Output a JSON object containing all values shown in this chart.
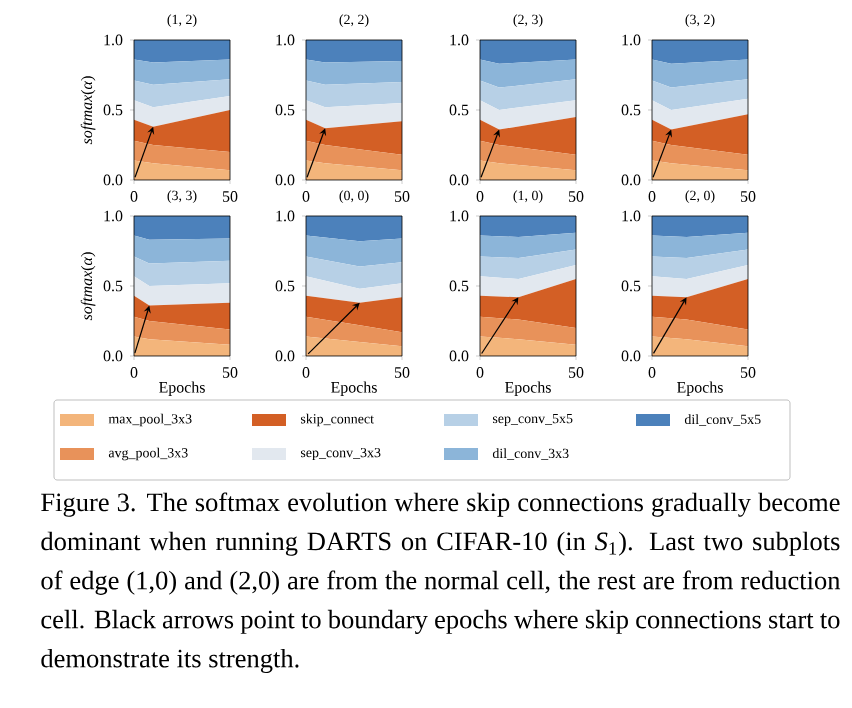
{
  "chart_data": [
    {
      "type": "area",
      "stacked": true,
      "title": "(1, 2)",
      "ylabel": "*softmax*(*α*)",
      "x": [
        0,
        10,
        50
      ],
      "xlim": [
        0,
        50
      ],
      "ylim": [
        0,
        1
      ],
      "xticks": [
        0,
        50
      ],
      "yticks": [
        {
          "value": 0,
          "label": "0.0"
        },
        {
          "value": 0.5,
          "label": "0.5"
        },
        {
          "value": 1,
          "label": "1.0"
        }
      ],
      "series": [
        {
          "color": "#f3b57b",
          "values": [
            0.14,
            0.12,
            0.07
          ]
        },
        {
          "color": "#e8925a",
          "values": [
            0.14,
            0.13,
            0.13
          ]
        },
        {
          "color": "#d35f25",
          "values": [
            0.15,
            0.13,
            0.3
          ]
        },
        {
          "color": "#e2e8ef",
          "values": [
            0.14,
            0.14,
            0.1
          ]
        },
        {
          "color": "#b7d0e6",
          "values": [
            0.14,
            0.16,
            0.12
          ]
        },
        {
          "color": "#8cb5d9",
          "values": [
            0.15,
            0.16,
            0.14
          ]
        },
        {
          "color": "#4c81bb",
          "values": [
            0.14,
            0.16,
            0.14
          ]
        }
      ]
    },
    {
      "type": "area",
      "stacked": true,
      "title": "(2, 2)",
      "x": [
        0,
        10,
        50
      ],
      "xlim": [
        0,
        50
      ],
      "ylim": [
        0,
        1
      ],
      "xticks": [
        0,
        50
      ],
      "yticks": [
        {
          "value": 0,
          "label": "0.0"
        },
        {
          "value": 0.5,
          "label": "0.5"
        },
        {
          "value": 1,
          "label": "1.0"
        }
      ],
      "series": [
        {
          "color": "#f3b57b",
          "values": [
            0.14,
            0.12,
            0.07
          ]
        },
        {
          "color": "#e8925a",
          "values": [
            0.14,
            0.13,
            0.11
          ]
        },
        {
          "color": "#d35f25",
          "values": [
            0.15,
            0.12,
            0.24
          ]
        },
        {
          "color": "#e2e8ef",
          "values": [
            0.14,
            0.15,
            0.13
          ]
        },
        {
          "color": "#b7d0e6",
          "values": [
            0.14,
            0.16,
            0.15
          ]
        },
        {
          "color": "#8cb5d9",
          "values": [
            0.15,
            0.16,
            0.15
          ]
        },
        {
          "color": "#4c81bb",
          "values": [
            0.14,
            0.16,
            0.15
          ]
        }
      ]
    },
    {
      "type": "area",
      "stacked": true,
      "title": "(2, 3)",
      "x": [
        0,
        10,
        50
      ],
      "xlim": [
        0,
        50
      ],
      "ylim": [
        0,
        1
      ],
      "xticks": [
        0,
        50
      ],
      "yticks": [
        {
          "value": 0,
          "label": "0.0"
        },
        {
          "value": 0.5,
          "label": "0.5"
        },
        {
          "value": 1,
          "label": "1.0"
        }
      ],
      "series": [
        {
          "color": "#f3b57b",
          "values": [
            0.14,
            0.12,
            0.07
          ]
        },
        {
          "color": "#e8925a",
          "values": [
            0.14,
            0.13,
            0.11
          ]
        },
        {
          "color": "#d35f25",
          "values": [
            0.15,
            0.11,
            0.27
          ]
        },
        {
          "color": "#e2e8ef",
          "values": [
            0.14,
            0.14,
            0.12
          ]
        },
        {
          "color": "#b7d0e6",
          "values": [
            0.14,
            0.16,
            0.15
          ]
        },
        {
          "color": "#8cb5d9",
          "values": [
            0.15,
            0.17,
            0.14
          ]
        },
        {
          "color": "#4c81bb",
          "values": [
            0.14,
            0.17,
            0.14
          ]
        }
      ]
    },
    {
      "type": "area",
      "stacked": true,
      "title": "(3, 2)",
      "x": [
        0,
        10,
        50
      ],
      "xlim": [
        0,
        50
      ],
      "ylim": [
        0,
        1
      ],
      "xticks": [
        0,
        50
      ],
      "yticks": [
        {
          "value": 0,
          "label": "0.0"
        },
        {
          "value": 0.5,
          "label": "0.5"
        },
        {
          "value": 1,
          "label": "1.0"
        }
      ],
      "series": [
        {
          "color": "#f3b57b",
          "values": [
            0.14,
            0.12,
            0.07
          ]
        },
        {
          "color": "#e8925a",
          "values": [
            0.14,
            0.13,
            0.11
          ]
        },
        {
          "color": "#d35f25",
          "values": [
            0.15,
            0.11,
            0.29
          ]
        },
        {
          "color": "#e2e8ef",
          "values": [
            0.14,
            0.14,
            0.11
          ]
        },
        {
          "color": "#b7d0e6",
          "values": [
            0.14,
            0.16,
            0.14
          ]
        },
        {
          "color": "#8cb5d9",
          "values": [
            0.15,
            0.17,
            0.14
          ]
        },
        {
          "color": "#4c81bb",
          "values": [
            0.14,
            0.17,
            0.14
          ]
        }
      ]
    },
    {
      "type": "area",
      "stacked": true,
      "title": "(3, 3)",
      "ylabel": "*softmax*(*α*)",
      "x": [
        0,
        8,
        50
      ],
      "xlim": [
        0,
        50
      ],
      "ylim": [
        0,
        1
      ],
      "xticks": [
        0,
        50
      ],
      "yticks": [
        {
          "value": 0,
          "label": "0.0"
        },
        {
          "value": 0.5,
          "label": "0.5"
        },
        {
          "value": 1,
          "label": "1.0"
        }
      ],
      "xlabel": "Epochs",
      "series": [
        {
          "color": "#f3b57b",
          "values": [
            0.14,
            0.12,
            0.08
          ]
        },
        {
          "color": "#e8925a",
          "values": [
            0.14,
            0.13,
            0.11
          ]
        },
        {
          "color": "#d35f25",
          "values": [
            0.15,
            0.11,
            0.19
          ]
        },
        {
          "color": "#e2e8ef",
          "values": [
            0.14,
            0.14,
            0.14
          ]
        },
        {
          "color": "#b7d0e6",
          "values": [
            0.14,
            0.16,
            0.16
          ]
        },
        {
          "color": "#8cb5d9",
          "values": [
            0.15,
            0.17,
            0.16
          ]
        },
        {
          "color": "#4c81bb",
          "values": [
            0.14,
            0.17,
            0.16
          ]
        }
      ]
    },
    {
      "type": "area",
      "stacked": true,
      "title": "(0, 0)",
      "x": [
        0,
        28,
        50
      ],
      "xlim": [
        0,
        50
      ],
      "ylim": [
        0,
        1
      ],
      "xticks": [
        0,
        50
      ],
      "yticks": [
        {
          "value": 0,
          "label": "0.0"
        },
        {
          "value": 0.5,
          "label": "0.5"
        },
        {
          "value": 1,
          "label": "1.0"
        }
      ],
      "xlabel": "Epochs",
      "series": [
        {
          "color": "#f3b57b",
          "values": [
            0.14,
            0.1,
            0.07
          ]
        },
        {
          "color": "#e8925a",
          "values": [
            0.14,
            0.12,
            0.1
          ]
        },
        {
          "color": "#d35f25",
          "values": [
            0.15,
            0.16,
            0.25
          ]
        },
        {
          "color": "#e2e8ef",
          "values": [
            0.14,
            0.1,
            0.1
          ]
        },
        {
          "color": "#b7d0e6",
          "values": [
            0.14,
            0.16,
            0.15
          ]
        },
        {
          "color": "#8cb5d9",
          "values": [
            0.15,
            0.18,
            0.17
          ]
        },
        {
          "color": "#4c81bb",
          "values": [
            0.14,
            0.18,
            0.16
          ]
        }
      ]
    },
    {
      "type": "area",
      "stacked": true,
      "title": "(1, 0)",
      "x": [
        0,
        20,
        50
      ],
      "xlim": [
        0,
        50
      ],
      "ylim": [
        0,
        1
      ],
      "xticks": [
        0,
        50
      ],
      "yticks": [
        {
          "value": 0,
          "label": "0.0"
        },
        {
          "value": 0.5,
          "label": "0.5"
        },
        {
          "value": 1,
          "label": "1.0"
        }
      ],
      "xlabel": "Epochs",
      "series": [
        {
          "color": "#f3b57b",
          "values": [
            0.14,
            0.12,
            0.08
          ]
        },
        {
          "color": "#e8925a",
          "values": [
            0.14,
            0.14,
            0.12
          ]
        },
        {
          "color": "#d35f25",
          "values": [
            0.15,
            0.16,
            0.35
          ]
        },
        {
          "color": "#e2e8ef",
          "values": [
            0.14,
            0.13,
            0.1
          ]
        },
        {
          "color": "#b7d0e6",
          "values": [
            0.14,
            0.15,
            0.11
          ]
        },
        {
          "color": "#8cb5d9",
          "values": [
            0.15,
            0.15,
            0.12
          ]
        },
        {
          "color": "#4c81bb",
          "values": [
            0.14,
            0.15,
            0.12
          ]
        }
      ]
    },
    {
      "type": "area",
      "stacked": true,
      "title": "(2, 0)",
      "x": [
        0,
        18,
        50
      ],
      "xlim": [
        0,
        50
      ],
      "ylim": [
        0,
        1
      ],
      "xticks": [
        0,
        50
      ],
      "yticks": [
        {
          "value": 0,
          "label": "0.0"
        },
        {
          "value": 0.5,
          "label": "0.5"
        },
        {
          "value": 1,
          "label": "1.0"
        }
      ],
      "xlabel": "Epochs",
      "legend": "bottom",
      "annotations": [
        "Figure 3. The softmax evolution where skip connections gradually become dominant when running DARTS on CIFAR-10 (in *S*$_{1}$). Last two subplots of edge (1,0) and (2,0) are from the normal cell, the rest are from reduction cell. Black arrows point to boundary epochs where skip connections start to demonstrate its strength."
      ],
      "series": [
        {
          "name": "max_pool_3x3",
          "color": "#f3b57b",
          "values": [
            0.14,
            0.12,
            0.07
          ]
        },
        {
          "name": "avg_pool_3x3",
          "color": "#e8925a",
          "values": [
            0.14,
            0.14,
            0.12
          ]
        },
        {
          "name": "skip_connect",
          "color": "#d35f25",
          "values": [
            0.15,
            0.16,
            0.36
          ]
        },
        {
          "name": "sep_conv_3x3",
          "color": "#e2e8ef",
          "values": [
            0.14,
            0.13,
            0.1
          ]
        },
        {
          "name": "sep_conv_5x5",
          "color": "#b7d0e6",
          "values": [
            0.14,
            0.15,
            0.11
          ]
        },
        {
          "name": "dil_conv_3x3",
          "color": "#8cb5d9",
          "values": [
            0.15,
            0.15,
            0.12
          ]
        },
        {
          "name": "dil_conv_5x5",
          "color": "#4c81bb",
          "values": [
            0.14,
            0.15,
            0.12
          ]
        }
      ]
    }
  ]
}
